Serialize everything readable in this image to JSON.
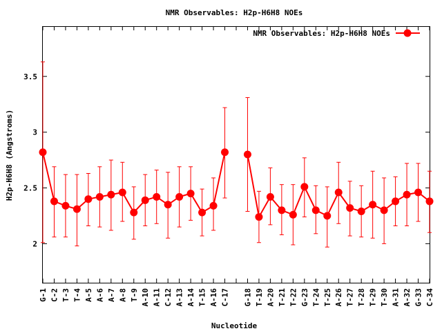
{
  "chart_data": {
    "type": "line",
    "title": "NMR Observables: H2p-H6H8 NOEs",
    "xlabel": "Nucleotide",
    "ylabel": "H2p-H6H8 (Angstroms)",
    "ylim": [
      1.65,
      3.95
    ],
    "yticks": [
      "2",
      "2.5",
      "3",
      "3.5"
    ],
    "grid": false,
    "legend_position": "top-right",
    "series_color": "#ff0000",
    "categories": [
      "G-1",
      "C-2",
      "T-3",
      "T-4",
      "A-5",
      "A-6",
      "A-7",
      "A-8",
      "T-9",
      "A-10",
      "A-11",
      "C-12",
      "A-13",
      "A-14",
      "T-15",
      "A-16",
      "C-17",
      "",
      "G-18",
      "T-19",
      "A-20",
      "T-21",
      "T-22",
      "G-23",
      "T-24",
      "T-25",
      "A-26",
      "T-27",
      "T-28",
      "T-29",
      "T-30",
      "A-31",
      "A-32",
      "G-33",
      "C-34"
    ],
    "series": [
      {
        "name": "NMR Observables: H2p-H6H8 NOEs",
        "values": [
          2.82,
          2.38,
          2.34,
          2.31,
          2.4,
          2.42,
          2.44,
          2.46,
          2.28,
          2.39,
          2.42,
          2.35,
          2.42,
          2.45,
          2.28,
          2.34,
          2.82,
          null,
          2.8,
          2.24,
          2.42,
          2.3,
          2.26,
          2.51,
          2.3,
          2.25,
          2.46,
          2.32,
          2.29,
          2.35,
          2.3,
          2.38,
          2.44,
          2.46,
          2.38
        ],
        "error_low": [
          2.01,
          2.06,
          2.06,
          1.98,
          2.16,
          2.15,
          2.12,
          2.2,
          2.04,
          2.16,
          2.18,
          2.05,
          2.15,
          2.21,
          2.07,
          2.12,
          2.41,
          null,
          2.29,
          2.01,
          2.17,
          2.08,
          1.99,
          2.24,
          2.09,
          1.97,
          2.18,
          2.07,
          2.06,
          2.05,
          2.0,
          2.16,
          2.16,
          2.2,
          2.1
        ],
        "error_high": [
          3.63,
          2.69,
          2.62,
          2.62,
          2.63,
          2.69,
          2.75,
          2.73,
          2.51,
          2.62,
          2.66,
          2.64,
          2.69,
          2.69,
          2.49,
          2.59,
          3.22,
          null,
          3.31,
          2.47,
          2.68,
          2.53,
          2.53,
          2.77,
          2.52,
          2.51,
          2.73,
          2.56,
          2.52,
          2.65,
          2.59,
          2.6,
          2.72,
          2.72,
          2.65
        ]
      }
    ]
  }
}
